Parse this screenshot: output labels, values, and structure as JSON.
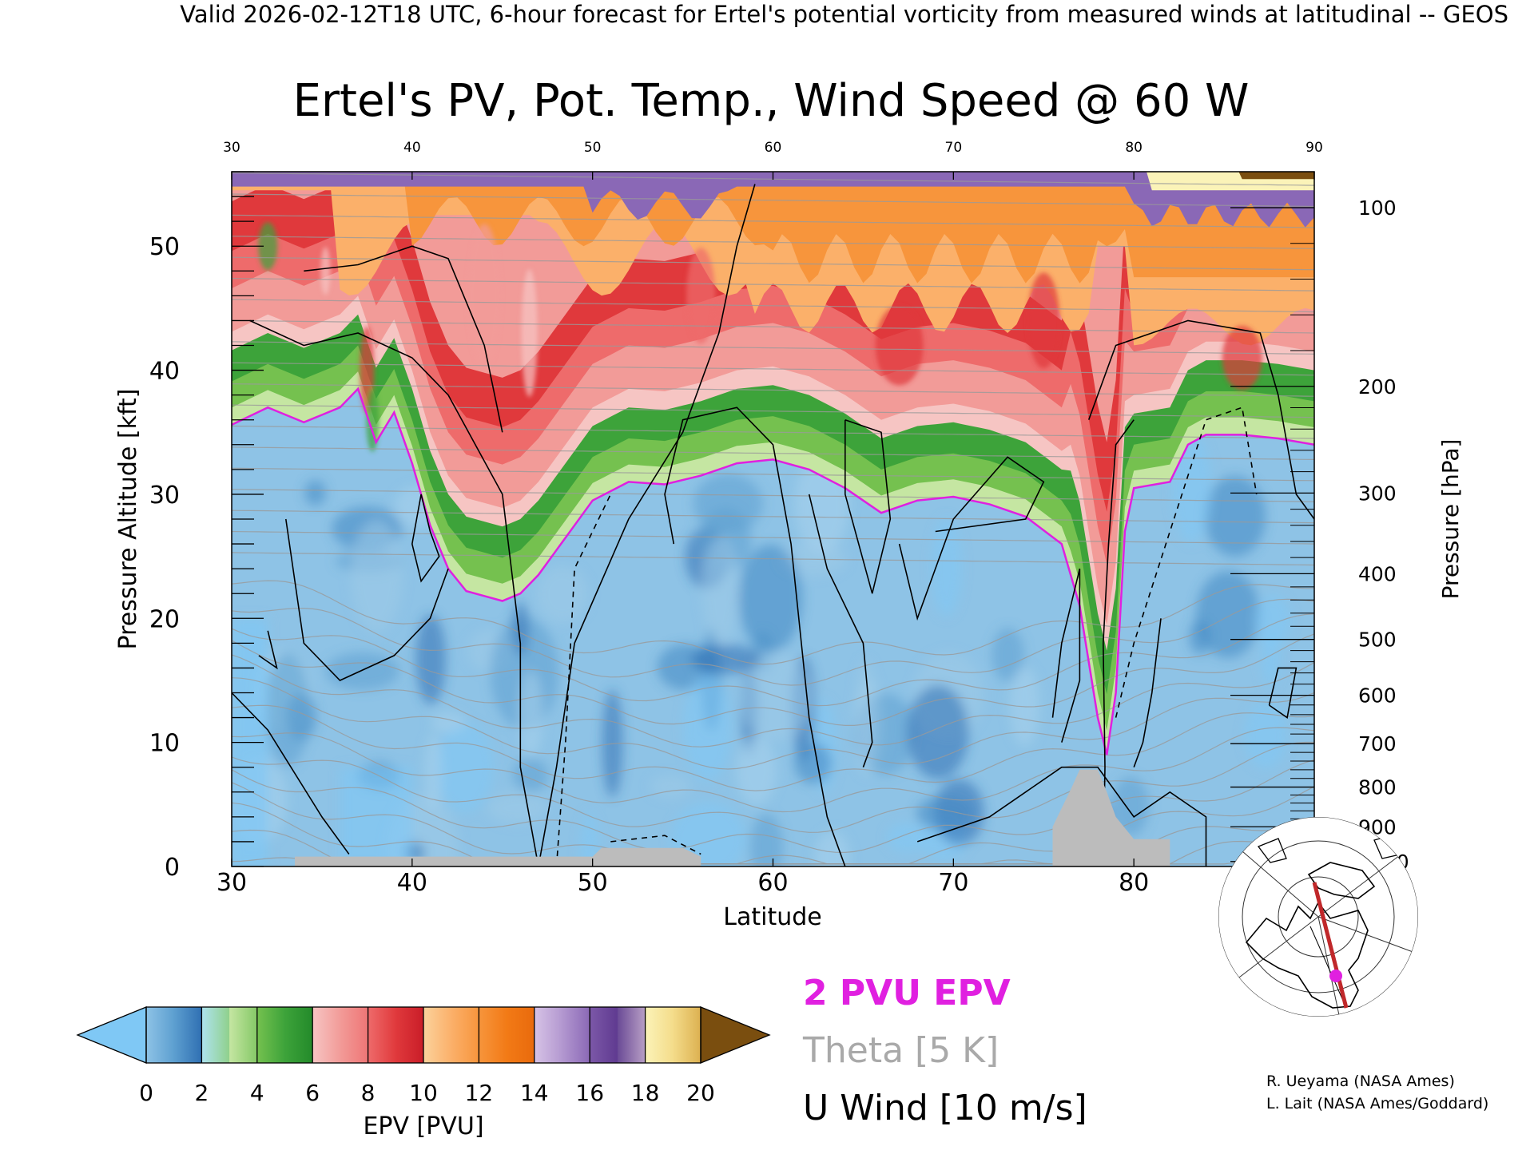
{
  "header": "Valid 2026-02-12T18 UTC, 6-hour forecast for Ertel's potential vorticity from measured winds at latitudinal -- GEOS",
  "chart_data": {
    "type": "heatmap",
    "title": "Ertel's PV, Pot. Temp., Wind Speed @ 60 W",
    "xlabel": "Latitude",
    "ylabel_left": "Pressure Altitude [kft]",
    "ylabel_right": "Pressure [hPa]",
    "xlim": [
      30,
      90
    ],
    "ylim_kft": [
      0,
      56
    ],
    "x_ticks": [
      "30",
      "40",
      "50",
      "60",
      "70",
      "80",
      "90"
    ],
    "y_ticks_left": [
      "0",
      "10",
      "20",
      "30",
      "40",
      "50"
    ],
    "y_ticks_right": [
      {
        "hpa": "100",
        "kft": 53.1
      },
      {
        "hpa": "200",
        "kft": 38.7
      },
      {
        "hpa": "300",
        "kft": 30.1
      },
      {
        "hpa": "400",
        "kft": 23.6
      },
      {
        "hpa": "500",
        "kft": 18.3
      },
      {
        "hpa": "600",
        "kft": 13.8
      },
      {
        "hpa": "700",
        "kft": 9.9
      },
      {
        "hpa": "800",
        "kft": 6.4
      },
      {
        "hpa": "900",
        "kft": 3.2
      },
      {
        "hpa": "1000",
        "kft": 0.4
      }
    ],
    "epv_colorbar": {
      "label": "EPV [PVU]",
      "ticks": [
        "0",
        "2",
        "4",
        "6",
        "8",
        "10",
        "12",
        "14",
        "16",
        "18",
        "20"
      ],
      "under_color": "#7fc8f5",
      "over_color": "#7a4e0f",
      "bins": [
        {
          "from": 0,
          "to": 1,
          "colors": [
            "#8ec3e6",
            "#5d9fd0"
          ]
        },
        {
          "from": 1,
          "to": 2,
          "colors": [
            "#5d9fd0",
            "#2f6fb2"
          ]
        },
        {
          "from": 2,
          "to": 3,
          "colors": [
            "#aee3f0",
            "#8fd08a"
          ]
        },
        {
          "from": 3,
          "to": 4,
          "colors": [
            "#c5e6a2",
            "#84c866"
          ]
        },
        {
          "from": 4,
          "to": 5,
          "colors": [
            "#75c14f",
            "#3da33a"
          ]
        },
        {
          "from": 5,
          "to": 6,
          "colors": [
            "#3da33a",
            "#238a2a"
          ]
        },
        {
          "from": 6,
          "to": 7,
          "colors": [
            "#f6c5c3",
            "#f29b98"
          ]
        },
        {
          "from": 7,
          "to": 8,
          "colors": [
            "#f29b98",
            "#ee7575"
          ]
        },
        {
          "from": 8,
          "to": 9,
          "colors": [
            "#ee6b6b",
            "#e0393c"
          ]
        },
        {
          "from": 9,
          "to": 10,
          "colors": [
            "#e0393c",
            "#c91d28"
          ]
        },
        {
          "from": 10,
          "to": 11,
          "colors": [
            "#fbd29c",
            "#fbb06a"
          ]
        },
        {
          "from": 11,
          "to": 12,
          "colors": [
            "#fbb06a",
            "#f7953c"
          ]
        },
        {
          "from": 12,
          "to": 13,
          "colors": [
            "#f7953c",
            "#f27a16"
          ]
        },
        {
          "from": 13,
          "to": 14,
          "colors": [
            "#f27a16",
            "#e96a0c"
          ]
        },
        {
          "from": 14,
          "to": 15,
          "colors": [
            "#d7c3e6",
            "#b398d0"
          ]
        },
        {
          "from": 15,
          "to": 16,
          "colors": [
            "#b398d0",
            "#8a68b6"
          ]
        },
        {
          "from": 16,
          "to": 17,
          "colors": [
            "#7c58a8",
            "#5f3a90"
          ]
        },
        {
          "from": 17,
          "to": 18,
          "colors": [
            "#6a4a96",
            "#b9a0c6"
          ]
        },
        {
          "from": 18,
          "to": 19,
          "colors": [
            "#fbf3b8",
            "#f4dc8a"
          ]
        },
        {
          "from": 19,
          "to": 20,
          "colors": [
            "#f4dc8a",
            "#dcb050"
          ]
        }
      ]
    },
    "legend": {
      "epv": "2 PVU EPV",
      "theta": "Theta [5 K]",
      "uwind": "U Wind [10 m/s]"
    },
    "colors": {
      "epv_contour": "#e020e0",
      "theta": "#9a9a9a",
      "uwind": "#000000",
      "terrain": "#bcbcbc"
    },
    "tropopause_2pvu_kft": [
      [
        30,
        35.6
      ],
      [
        32,
        37
      ],
      [
        34,
        35.8
      ],
      [
        36,
        37
      ],
      [
        37,
        38.5
      ],
      [
        38,
        34.2
      ],
      [
        39,
        36.6
      ],
      [
        40,
        32.5
      ],
      [
        41,
        27.5
      ],
      [
        42,
        24
      ],
      [
        43,
        22.2
      ],
      [
        44,
        21.8
      ],
      [
        45,
        21.4
      ],
      [
        46,
        22
      ],
      [
        47,
        23.5
      ],
      [
        48,
        25.5
      ],
      [
        49,
        27.5
      ],
      [
        50,
        29.5
      ],
      [
        52,
        31
      ],
      [
        54,
        30.8
      ],
      [
        56,
        31.5
      ],
      [
        58,
        32.5
      ],
      [
        60,
        32.8
      ],
      [
        62,
        32
      ],
      [
        64,
        30.5
      ],
      [
        66,
        28.5
      ],
      [
        68,
        29.5
      ],
      [
        70,
        29.8
      ],
      [
        72,
        29.2
      ],
      [
        74,
        28.2
      ],
      [
        76,
        26
      ],
      [
        77,
        21
      ],
      [
        78,
        12
      ],
      [
        78.5,
        9
      ],
      [
        79,
        14
      ],
      [
        79.5,
        27
      ],
      [
        80,
        30.5
      ],
      [
        82,
        31
      ],
      [
        83,
        34
      ],
      [
        84,
        34.8
      ],
      [
        86,
        34.8
      ],
      [
        88,
        34.5
      ],
      [
        90,
        34
      ]
    ],
    "theta_levels_K": [
      280,
      290,
      300,
      310,
      320,
      330,
      340,
      350,
      360,
      370,
      380,
      390,
      400,
      410
    ],
    "u_wind_contours_m_s": [
      -10,
      0,
      10,
      30,
      50
    ],
    "terrain_top_kft": [
      [
        30,
        0
      ],
      [
        33.5,
        0
      ],
      [
        33.5,
        0.8
      ],
      [
        50,
        0.8
      ],
      [
        50.5,
        1.5
      ],
      [
        55,
        1.5
      ],
      [
        56,
        0.8
      ],
      [
        56,
        0
      ],
      [
        75.5,
        0
      ],
      [
        75.5,
        3.2
      ],
      [
        76.5,
        6.2
      ],
      [
        77,
        7.8
      ],
      [
        78,
        7.8
      ],
      [
        78.5,
        6
      ],
      [
        79,
        4
      ],
      [
        80,
        2.2
      ],
      [
        82,
        2.2
      ],
      [
        82,
        0
      ],
      [
        90,
        0
      ]
    ]
  },
  "map_inset": {
    "legend_icon": "north-america-polar-map-icon",
    "transect_color": "#c0282a",
    "marker_color": "#e020e0"
  },
  "credits": [
    "R. Ueyama (NASA Ames)",
    "L. Lait (NASA Ames/Goddard)"
  ]
}
